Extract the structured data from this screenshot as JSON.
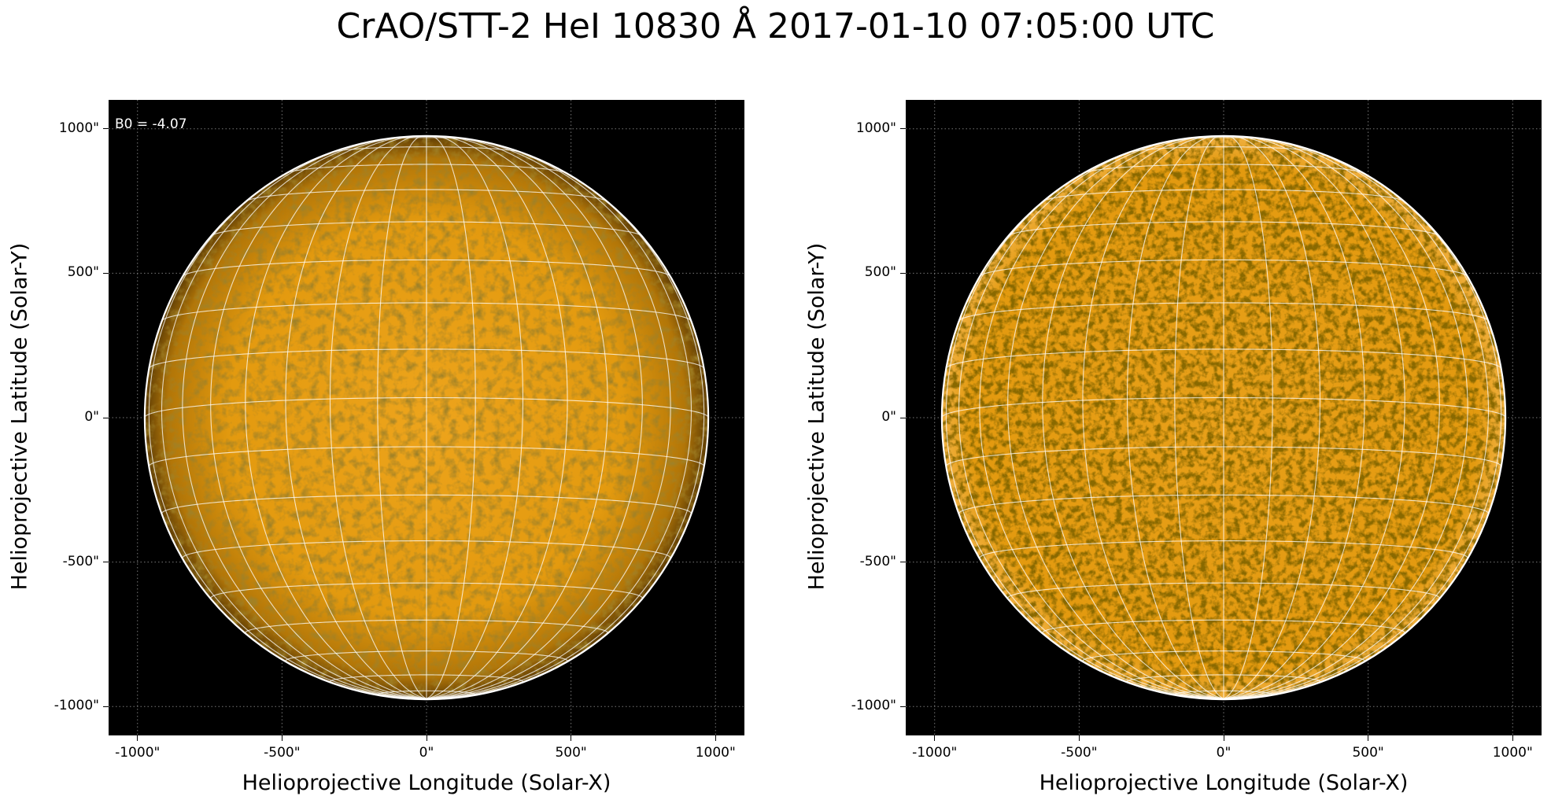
{
  "title": "CrAO/STT-2 HeI 10830 Å 2017-01-10 07:05:00 UTC",
  "panels": [
    {
      "annotation": "B0 = -4.07",
      "xlabel": "Helioprojective Longitude (Solar-X)",
      "ylabel": "Helioprojective Latitude (Solar-Y)",
      "style": "smooth"
    },
    {
      "annotation": "",
      "xlabel": "Helioprojective Longitude (Solar-X)",
      "ylabel": "Helioprojective Latitude (Solar-Y)",
      "style": "contrast"
    }
  ],
  "ticks": {
    "x_values": [
      -1000,
      -500,
      0,
      500,
      1000
    ],
    "x_labels": [
      "-1000\"",
      "-500\"",
      "0\"",
      "500\"",
      "1000\""
    ],
    "y_values": [
      1000,
      500,
      0,
      -500,
      -1000
    ],
    "y_labels": [
      "1000\"",
      "500\"",
      "0\"",
      "-500\"",
      "-1000\""
    ]
  },
  "axes": {
    "xlim": [
      -1100,
      1100
    ],
    "ylim": [
      -1100,
      1100
    ],
    "solar_radius_arcsec": 975
  },
  "grid": {
    "lon_step_deg": 10,
    "lat_step_deg": 10,
    "b0_deg": -4.07
  },
  "colors": {
    "disk": "#e39a0f",
    "disk_dark": "#8a5a08",
    "grid": "#ffffff",
    "background": "#000000"
  }
}
